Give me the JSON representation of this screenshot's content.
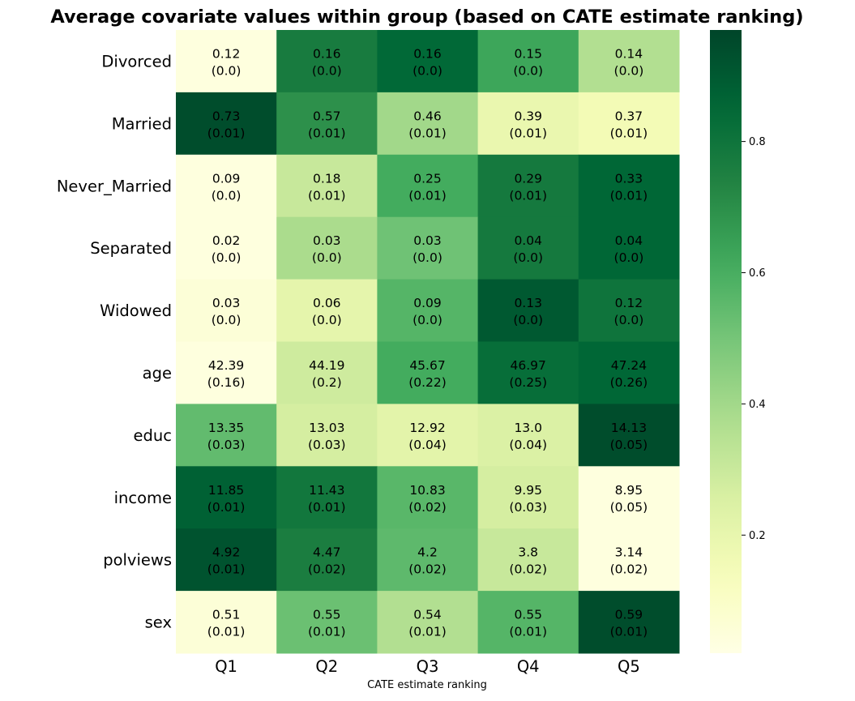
{
  "chart_data": {
    "type": "heatmap",
    "title": "Average covariate values within group (based on CATE estimate ranking)",
    "xlabel": "CATE estimate ranking",
    "ylabel": "",
    "x_categories": [
      "Q1",
      "Q2",
      "Q3",
      "Q4",
      "Q5"
    ],
    "y_categories": [
      "Divorced",
      "Married",
      "Never_Married",
      "Separated",
      "Widowed",
      "age",
      "educ",
      "income",
      "polviews",
      "sex"
    ],
    "cell_text": [
      [
        [
          "0.12",
          "(0.0)"
        ],
        [
          "0.16",
          "(0.0)"
        ],
        [
          "0.16",
          "(0.0)"
        ],
        [
          "0.15",
          "(0.0)"
        ],
        [
          "0.14",
          "(0.0)"
        ]
      ],
      [
        [
          "0.73",
          "(0.01)"
        ],
        [
          "0.57",
          "(0.01)"
        ],
        [
          "0.46",
          "(0.01)"
        ],
        [
          "0.39",
          "(0.01)"
        ],
        [
          "0.37",
          "(0.01)"
        ]
      ],
      [
        [
          "0.09",
          "(0.0)"
        ],
        [
          "0.18",
          "(0.01)"
        ],
        [
          "0.25",
          "(0.01)"
        ],
        [
          "0.29",
          "(0.01)"
        ],
        [
          "0.33",
          "(0.01)"
        ]
      ],
      [
        [
          "0.02",
          "(0.0)"
        ],
        [
          "0.03",
          "(0.0)"
        ],
        [
          "0.03",
          "(0.0)"
        ],
        [
          "0.04",
          "(0.0)"
        ],
        [
          "0.04",
          "(0.0)"
        ]
      ],
      [
        [
          "0.03",
          "(0.0)"
        ],
        [
          "0.06",
          "(0.0)"
        ],
        [
          "0.09",
          "(0.0)"
        ],
        [
          "0.13",
          "(0.0)"
        ],
        [
          "0.12",
          "(0.0)"
        ]
      ],
      [
        [
          "42.39",
          "(0.16)"
        ],
        [
          "44.19",
          "(0.2)"
        ],
        [
          "45.67",
          "(0.22)"
        ],
        [
          "46.97",
          "(0.25)"
        ],
        [
          "47.24",
          "(0.26)"
        ]
      ],
      [
        [
          "13.35",
          "(0.03)"
        ],
        [
          "13.03",
          "(0.03)"
        ],
        [
          "12.92",
          "(0.04)"
        ],
        [
          "13.0",
          "(0.04)"
        ],
        [
          "14.13",
          "(0.05)"
        ]
      ],
      [
        [
          "11.85",
          "(0.01)"
        ],
        [
          "11.43",
          "(0.01)"
        ],
        [
          "10.83",
          "(0.02)"
        ],
        [
          "9.95",
          "(0.03)"
        ],
        [
          "8.95",
          "(0.05)"
        ]
      ],
      [
        [
          "4.92",
          "(0.01)"
        ],
        [
          "4.47",
          "(0.02)"
        ],
        [
          "4.2",
          "(0.02)"
        ],
        [
          "3.8",
          "(0.02)"
        ],
        [
          "3.14",
          "(0.02)"
        ]
      ],
      [
        [
          "0.51",
          "(0.01)"
        ],
        [
          "0.55",
          "(0.01)"
        ],
        [
          "0.54",
          "(0.01)"
        ],
        [
          "0.55",
          "(0.01)"
        ],
        [
          "0.59",
          "(0.01)"
        ]
      ]
    ],
    "color_values": [
      [
        0.02,
        0.79,
        0.87,
        0.64,
        0.36
      ],
      [
        0.97,
        0.71,
        0.4,
        0.18,
        0.14
      ],
      [
        0.02,
        0.3,
        0.62,
        0.8,
        0.88
      ],
      [
        0.02,
        0.38,
        0.52,
        0.8,
        0.88
      ],
      [
        0.04,
        0.2,
        0.58,
        0.93,
        0.82
      ],
      [
        0.02,
        0.28,
        0.62,
        0.85,
        0.88
      ],
      [
        0.55,
        0.26,
        0.21,
        0.24,
        0.97
      ],
      [
        0.9,
        0.81,
        0.57,
        0.26,
        0.02
      ],
      [
        0.95,
        0.78,
        0.56,
        0.3,
        0.02
      ],
      [
        0.04,
        0.53,
        0.36,
        0.58,
        0.97
      ]
    ],
    "colormap": "YlGn",
    "colorbar": {
      "ticks": [
        0.2,
        0.4,
        0.6,
        0.8
      ],
      "range": [
        0.02,
        0.97
      ]
    },
    "annotation_color": "#000000"
  }
}
